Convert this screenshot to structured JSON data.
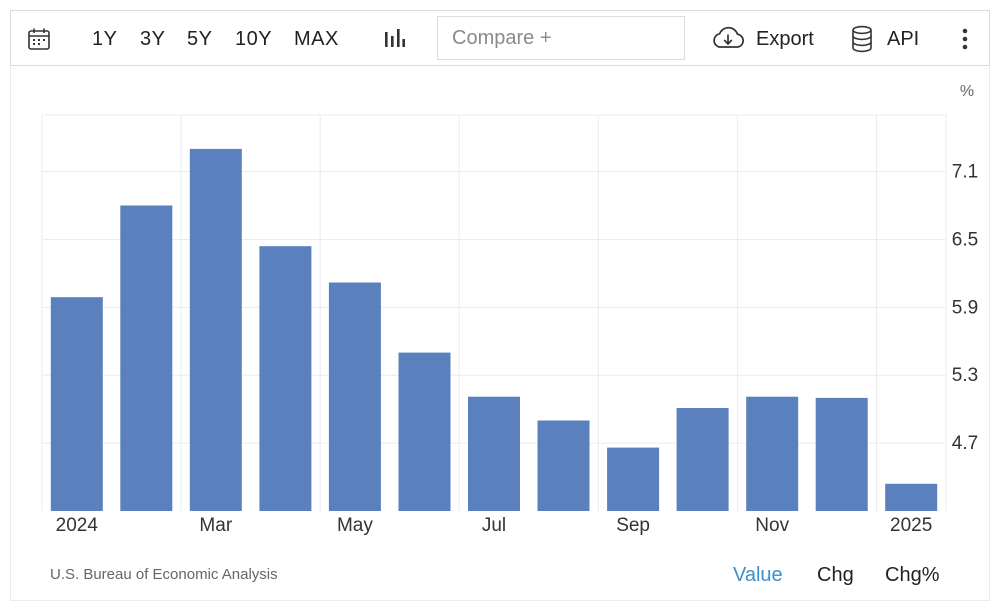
{
  "toolbar": {
    "calendar_icon": "calendar-icon",
    "ranges": [
      "1Y",
      "3Y",
      "5Y",
      "10Y",
      "MAX"
    ],
    "chart_type_icon": "bar-chart-icon",
    "compare_placeholder": "Compare +",
    "export_icon": "cloud-download-icon",
    "export_label": "Export",
    "api_icon": "database-icon",
    "api_label": "API",
    "more_icon": "vertical-ellipsis-icon"
  },
  "chart_data": {
    "type": "bar",
    "unit": "%",
    "categories": [
      "Jan 2024",
      "Feb 2024",
      "Mar 2024",
      "Apr 2024",
      "May 2024",
      "Jun 2024",
      "Jul 2024",
      "Aug 2024",
      "Sep 2024",
      "Oct 2024",
      "Nov 2024",
      "Dec 2024",
      "Jan 2025"
    ],
    "values": [
      5.99,
      6.8,
      7.3,
      6.44,
      6.12,
      5.5,
      5.11,
      4.9,
      4.66,
      5.01,
      5.11,
      5.1,
      4.34
    ],
    "x_tick_labels": [
      "2024",
      "Mar",
      "May",
      "Jul",
      "Sep",
      "Nov",
      "2025"
    ],
    "y_ticks": [
      4.7,
      5.3,
      5.9,
      6.5,
      7.1
    ],
    "ylim": [
      4.1,
      7.6
    ],
    "bar_color": "#5a80bd",
    "grid": true
  },
  "footer": {
    "source": "U.S. Bureau of Economic Analysis",
    "modes": [
      "Value",
      "Chg",
      "Chg%"
    ],
    "active_mode": "Value",
    "active_color": "#3d8fc9"
  }
}
